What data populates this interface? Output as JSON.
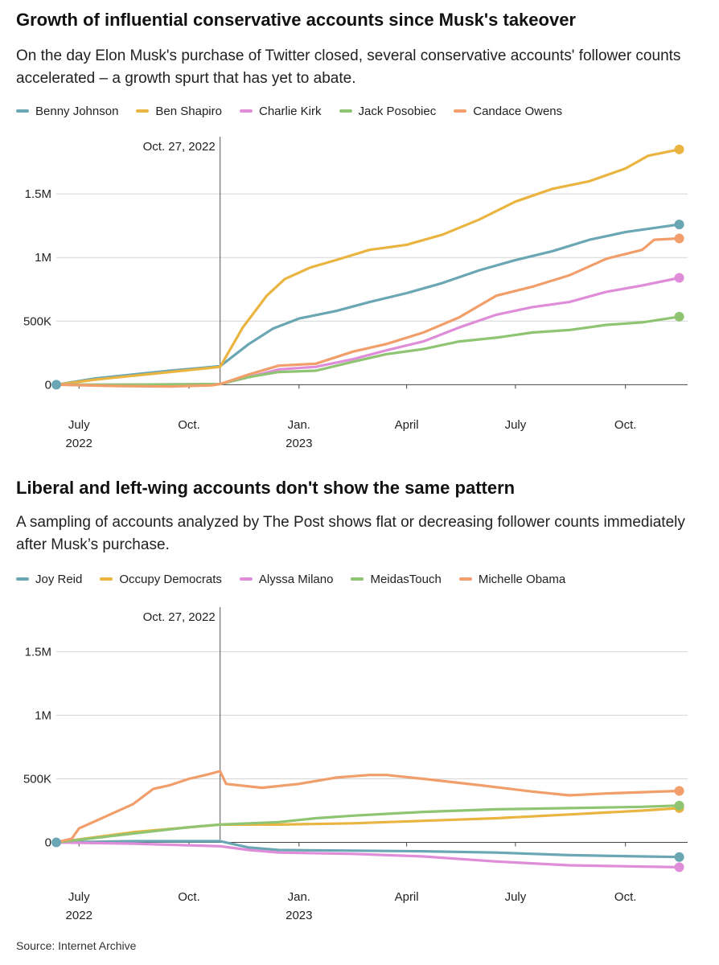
{
  "source": "Source: Internet Archive",
  "chart_data": [
    {
      "type": "line",
      "title": "Growth of influential conservative accounts since Musk's takeover",
      "subtitle": "On the day Elon Musk's purchase of Twitter closed, several conservative accounts' follower counts accelerated – a growth spurt that has yet to abate.",
      "annotation": "Oct. 27, 2022",
      "annotation_x": "2022-10-27",
      "x_ticks": [
        {
          "date": "2022-07-01",
          "label": "July",
          "sub": "2022"
        },
        {
          "date": "2022-10-01",
          "label": "Oct.",
          "sub": ""
        },
        {
          "date": "2023-01-01",
          "label": "Jan.",
          "sub": "2023"
        },
        {
          "date": "2023-04-01",
          "label": "April",
          "sub": ""
        },
        {
          "date": "2023-07-01",
          "label": "July",
          "sub": ""
        },
        {
          "date": "2023-10-01",
          "label": "Oct.",
          "sub": ""
        }
      ],
      "y_ticks": [
        {
          "value": 0,
          "label": "0"
        },
        {
          "value": 500000,
          "label": "500K"
        },
        {
          "value": 1000000,
          "label": "1M"
        },
        {
          "value": 1500000,
          "label": "1.5M"
        }
      ],
      "xlim": [
        "2022-06-12",
        "2023-11-22"
      ],
      "ylim": [
        -200000,
        1950000
      ],
      "series": [
        {
          "name": "Benny Johnson",
          "color": "#6aa6b3",
          "end_marker": true,
          "x": [
            "2022-06-12",
            "2022-07-15",
            "2022-08-15",
            "2022-09-15",
            "2022-10-27",
            "2022-11-20",
            "2022-12-10",
            "2023-01-01",
            "2023-02-01",
            "2023-03-01",
            "2023-04-01",
            "2023-05-01",
            "2023-06-01",
            "2023-07-01",
            "2023-08-01",
            "2023-09-01",
            "2023-10-01",
            "2023-11-15"
          ],
          "values": [
            0,
            50000,
            80000,
            110000,
            145000,
            320000,
            440000,
            520000,
            580000,
            650000,
            720000,
            800000,
            900000,
            980000,
            1050000,
            1140000,
            1200000,
            1260000
          ]
        },
        {
          "name": "Ben Shapiro",
          "color": "#eab440",
          "end_marker": true,
          "x": [
            "2022-06-12",
            "2022-07-15",
            "2022-08-15",
            "2022-09-15",
            "2022-10-27",
            "2022-11-15",
            "2022-12-05",
            "2022-12-20",
            "2023-01-10",
            "2023-02-01",
            "2023-03-01",
            "2023-04-01",
            "2023-05-01",
            "2023-06-01",
            "2023-07-01",
            "2023-08-01",
            "2023-09-01",
            "2023-10-01",
            "2023-10-20",
            "2023-11-15"
          ],
          "values": [
            0,
            40000,
            70000,
            100000,
            140000,
            450000,
            700000,
            830000,
            920000,
            980000,
            1060000,
            1100000,
            1180000,
            1300000,
            1440000,
            1540000,
            1600000,
            1700000,
            1800000,
            1850000
          ]
        },
        {
          "name": "Charlie Kirk",
          "color": "#df8dd8",
          "end_marker": true,
          "x": [
            "2022-06-12",
            "2022-08-01",
            "2022-10-27",
            "2022-11-20",
            "2022-12-15",
            "2023-01-15",
            "2023-02-15",
            "2023-03-15",
            "2023-04-15",
            "2023-05-15",
            "2023-06-15",
            "2023-07-15",
            "2023-08-15",
            "2023-09-15",
            "2023-10-15",
            "2023-11-15"
          ],
          "values": [
            0,
            0,
            5000,
            60000,
            120000,
            140000,
            200000,
            270000,
            340000,
            450000,
            550000,
            610000,
            650000,
            730000,
            780000,
            840000
          ]
        },
        {
          "name": "Jack Posobiec",
          "color": "#8fc472",
          "end_marker": true,
          "x": [
            "2022-06-12",
            "2022-08-01",
            "2022-10-27",
            "2022-11-20",
            "2022-12-15",
            "2023-01-15",
            "2023-02-15",
            "2023-03-15",
            "2023-04-15",
            "2023-05-15",
            "2023-06-15",
            "2023-07-15",
            "2023-08-15",
            "2023-09-15",
            "2023-10-15",
            "2023-11-15"
          ],
          "values": [
            0,
            0,
            5000,
            60000,
            100000,
            110000,
            180000,
            240000,
            280000,
            340000,
            370000,
            410000,
            430000,
            470000,
            490000,
            535000
          ]
        },
        {
          "name": "Candace Owens",
          "color": "#f19e6a",
          "end_marker": true,
          "x": [
            "2022-06-12",
            "2022-08-01",
            "2022-09-15",
            "2022-10-20",
            "2022-10-27",
            "2022-11-20",
            "2022-12-15",
            "2023-01-15",
            "2023-02-15",
            "2023-03-15",
            "2023-04-15",
            "2023-05-15",
            "2023-06-15",
            "2023-07-15",
            "2023-08-15",
            "2023-09-15",
            "2023-10-15",
            "2023-10-25",
            "2023-11-15"
          ],
          "values": [
            0,
            -10000,
            -15000,
            -5000,
            5000,
            80000,
            150000,
            165000,
            260000,
            320000,
            410000,
            530000,
            700000,
            770000,
            860000,
            990000,
            1060000,
            1140000,
            1150000
          ]
        }
      ]
    },
    {
      "type": "line",
      "title": "Liberal and left-wing accounts don't show the same pattern",
      "subtitle": "A sampling of accounts analyzed by The Post shows flat or decreasing follower counts immediately after Musk’s purchase.",
      "annotation": "Oct. 27, 2022",
      "annotation_x": "2022-10-27",
      "x_ticks": [
        {
          "date": "2022-07-01",
          "label": "July",
          "sub": "2022"
        },
        {
          "date": "2022-10-01",
          "label": "Oct.",
          "sub": ""
        },
        {
          "date": "2023-01-01",
          "label": "Jan.",
          "sub": "2023"
        },
        {
          "date": "2023-04-01",
          "label": "April",
          "sub": ""
        },
        {
          "date": "2023-07-01",
          "label": "July",
          "sub": ""
        },
        {
          "date": "2023-10-01",
          "label": "Oct.",
          "sub": ""
        }
      ],
      "y_ticks": [
        {
          "value": 0,
          "label": "0"
        },
        {
          "value": 500000,
          "label": "500K"
        },
        {
          "value": 1000000,
          "label": "1M"
        },
        {
          "value": 1500000,
          "label": "1.5M"
        }
      ],
      "xlim": [
        "2022-06-12",
        "2023-11-22"
      ],
      "ylim": [
        -300000,
        1850000
      ],
      "series": [
        {
          "name": "Joy Reid",
          "color": "#6aa6b3",
          "end_marker": true,
          "x": [
            "2022-06-12",
            "2022-08-15",
            "2022-10-27",
            "2022-11-20",
            "2022-12-15",
            "2023-02-15",
            "2023-04-15",
            "2023-06-15",
            "2023-08-15",
            "2023-10-15",
            "2023-11-15"
          ],
          "values": [
            0,
            10000,
            10000,
            -40000,
            -60000,
            -65000,
            -70000,
            -80000,
            -100000,
            -110000,
            -115000
          ]
        },
        {
          "name": "Occupy Democrats",
          "color": "#eab440",
          "end_marker": true,
          "x": [
            "2022-06-12",
            "2022-08-15",
            "2022-10-27",
            "2022-12-15",
            "2023-02-15",
            "2023-04-15",
            "2023-06-15",
            "2023-08-15",
            "2023-10-15",
            "2023-11-15"
          ],
          "values": [
            0,
            80000,
            140000,
            140000,
            150000,
            170000,
            190000,
            220000,
            250000,
            270000
          ]
        },
        {
          "name": "Alyssa Milano",
          "color": "#df8dd8",
          "end_marker": true,
          "x": [
            "2022-06-12",
            "2022-08-15",
            "2022-10-27",
            "2022-11-20",
            "2022-12-15",
            "2023-02-15",
            "2023-04-15",
            "2023-06-15",
            "2023-08-15",
            "2023-10-15",
            "2023-11-15"
          ],
          "values": [
            0,
            -10000,
            -30000,
            -60000,
            -80000,
            -90000,
            -110000,
            -150000,
            -180000,
            -190000,
            -195000
          ]
        },
        {
          "name": "MeidasTouch",
          "color": "#8fc472",
          "end_marker": true,
          "x": [
            "2022-06-12",
            "2022-08-15",
            "2022-10-01",
            "2022-10-27",
            "2022-12-15",
            "2023-01-15",
            "2023-02-15",
            "2023-04-15",
            "2023-06-15",
            "2023-08-15",
            "2023-10-15",
            "2023-11-15"
          ],
          "values": [
            0,
            70000,
            120000,
            140000,
            160000,
            190000,
            210000,
            240000,
            260000,
            270000,
            280000,
            290000
          ]
        },
        {
          "name": "Michelle Obama",
          "color": "#f19e6a",
          "end_marker": true,
          "x": [
            "2022-06-12",
            "2022-06-25",
            "2022-07-01",
            "2022-08-15",
            "2022-09-01",
            "2022-09-15",
            "2022-10-01",
            "2022-10-15",
            "2022-10-27",
            "2022-11-01",
            "2022-12-01",
            "2023-01-01",
            "2023-02-01",
            "2023-03-01",
            "2023-03-15",
            "2023-04-15",
            "2023-06-01",
            "2023-07-15",
            "2023-08-15",
            "2023-09-15",
            "2023-10-15",
            "2023-11-15"
          ],
          "values": [
            0,
            30000,
            110000,
            300000,
            420000,
            450000,
            500000,
            530000,
            560000,
            460000,
            430000,
            460000,
            510000,
            530000,
            530000,
            500000,
            450000,
            400000,
            370000,
            385000,
            395000,
            405000
          ]
        }
      ]
    }
  ]
}
